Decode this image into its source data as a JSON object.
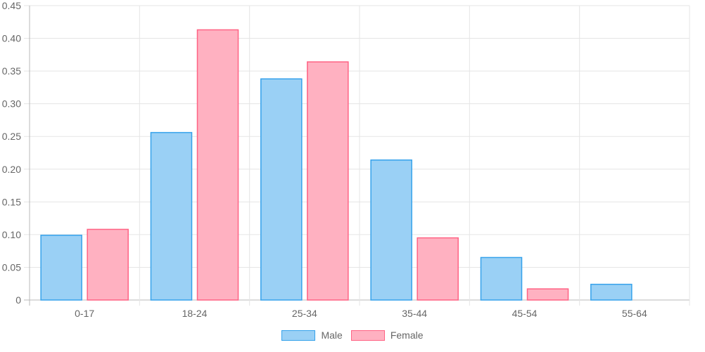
{
  "chart_data": {
    "type": "bar",
    "categories": [
      "0-17",
      "18-24",
      "25-34",
      "35-44",
      "45-54",
      "55-64"
    ],
    "series": [
      {
        "name": "Male",
        "values": [
          0.099,
          0.256,
          0.338,
          0.214,
          0.065,
          0.024
        ],
        "fill": "#9ad0f5",
        "stroke": "#36a2eb"
      },
      {
        "name": "Female",
        "values": [
          0.108,
          0.413,
          0.364,
          0.095,
          0.017,
          0
        ],
        "fill": "#ffb1c1",
        "stroke": "#ff6384"
      }
    ],
    "yticks": [
      "0",
      "0.05",
      "0.10",
      "0.15",
      "0.20",
      "0.25",
      "0.30",
      "0.35",
      "0.40",
      "0.45"
    ],
    "ylim": [
      0,
      0.45
    ],
    "grid": true,
    "legend_position": "bottom"
  }
}
